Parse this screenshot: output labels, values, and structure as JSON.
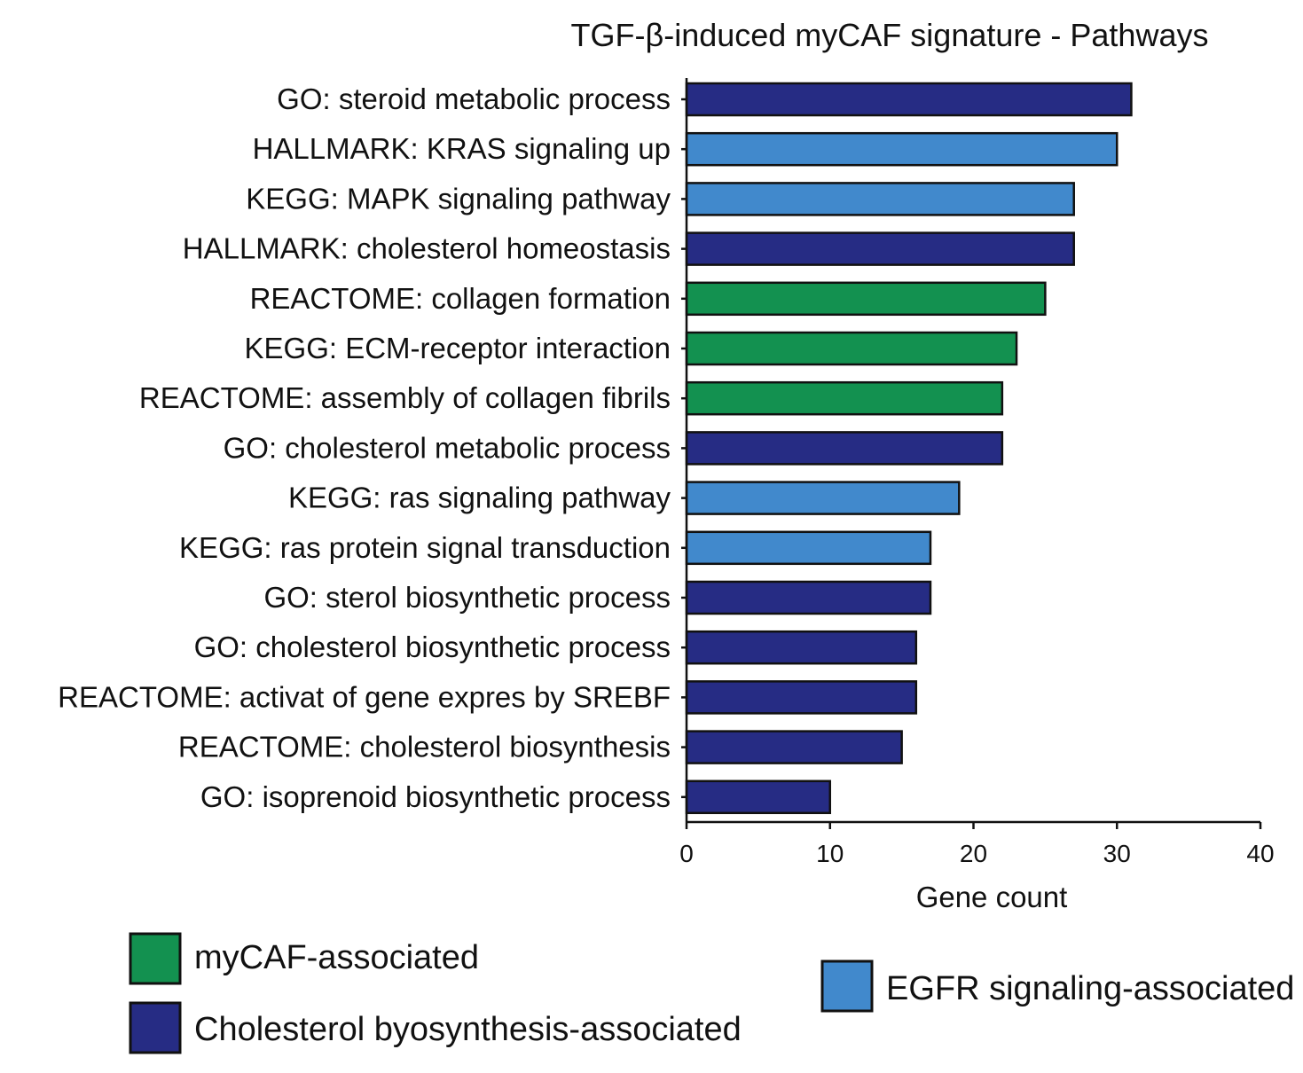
{
  "chart_data": {
    "type": "bar",
    "orientation": "horizontal",
    "title": "TGF-β-induced myCAF signature - Pathways",
    "xlabel": "Gene count",
    "ylabel": "",
    "xlim": [
      0,
      40
    ],
    "xticks": [
      0,
      10,
      20,
      30,
      40
    ],
    "grid": false,
    "colors": {
      "myCAF": "#139150",
      "cholesterol": "#262c84",
      "egfr": "#4189cc",
      "outline": "#111111"
    },
    "categories": [
      "GO: steroid metabolic process",
      "HALLMARK: KRAS signaling up",
      "KEGG: MAPK signaling pathway",
      "HALLMARK: cholesterol homeostasis",
      "REACTOME: collagen formation",
      "KEGG: ECM-receptor interaction",
      "REACTOME: assembly of collagen fibrils",
      "GO: cholesterol metabolic process",
      "KEGG: ras signaling pathway",
      "KEGG: ras protein signal transduction",
      "GO: sterol biosynthetic process",
      "GO: cholesterol biosynthetic process",
      "REACTOME: activat of gene expres by SREBF",
      "REACTOME: cholesterol biosynthesis",
      "GO: isoprenoid biosynthetic process"
    ],
    "values": [
      31,
      30,
      27,
      27,
      25,
      23,
      22,
      22,
      19,
      17,
      17,
      16,
      16,
      15,
      10
    ],
    "groups": [
      "cholesterol",
      "egfr",
      "egfr",
      "cholesterol",
      "myCAF",
      "myCAF",
      "myCAF",
      "cholesterol",
      "egfr",
      "egfr",
      "cholesterol",
      "cholesterol",
      "cholesterol",
      "cholesterol",
      "cholesterol"
    ],
    "legend": [
      {
        "key": "myCAF",
        "label": "myCAF-associated"
      },
      {
        "key": "cholesterol",
        "label": "Cholesterol byosynthesis-associated"
      },
      {
        "key": "egfr",
        "label": "EGFR signaling-associated"
      }
    ],
    "legend_position": "bottom"
  }
}
